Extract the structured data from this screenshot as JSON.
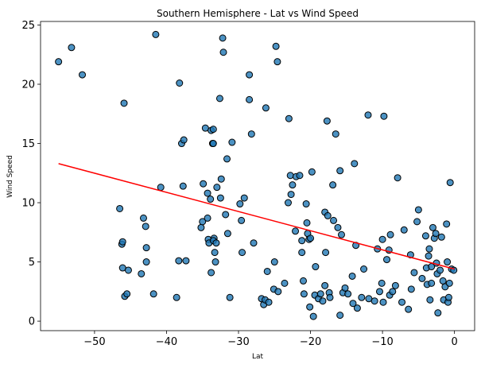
{
  "chart_data": {
    "type": "scatter",
    "title": "Southern Hemisphere - Lat vs Wind Speed",
    "xlabel": "Lat",
    "ylabel": "Wind Speed",
    "xlim": [
      -57.5,
      2.8
    ],
    "ylim": [
      -0.8,
      25.3
    ],
    "xticks": [
      -50,
      -40,
      -30,
      -20,
      -10,
      0
    ],
    "yticks": [
      0,
      5,
      10,
      15,
      20,
      25
    ],
    "grid": false,
    "point_color": "#1f77b4",
    "point_edge_color": "#000000",
    "point_alpha": 0.8,
    "regression": {
      "color": "#ff0000",
      "x": [
        -55,
        0
      ],
      "y": [
        13.3,
        4.4
      ]
    },
    "points": [
      [
        -55.0,
        21.9
      ],
      [
        -53.2,
        23.1
      ],
      [
        -51.7,
        20.8
      ],
      [
        -46.5,
        9.5
      ],
      [
        -46.2,
        6.5
      ],
      [
        -46.1,
        6.7
      ],
      [
        -46.1,
        4.5
      ],
      [
        -45.9,
        18.4
      ],
      [
        -45.8,
        2.1
      ],
      [
        -45.5,
        2.3
      ],
      [
        -45.3,
        4.3
      ],
      [
        -43.5,
        4.0
      ],
      [
        -43.2,
        8.7
      ],
      [
        -42.9,
        8.0
      ],
      [
        -42.8,
        6.2
      ],
      [
        -42.8,
        5.0
      ],
      [
        -41.8,
        2.3
      ],
      [
        -41.5,
        24.2
      ],
      [
        -40.8,
        11.3
      ],
      [
        -38.6,
        2.0
      ],
      [
        -38.3,
        5.1
      ],
      [
        -38.2,
        20.1
      ],
      [
        -37.9,
        15.0
      ],
      [
        -37.6,
        15.3
      ],
      [
        -37.7,
        11.4
      ],
      [
        -37.3,
        5.1
      ],
      [
        -35.2,
        7.9
      ],
      [
        -35.0,
        8.4
      ],
      [
        -34.9,
        11.6
      ],
      [
        -34.6,
        16.3
      ],
      [
        -34.3,
        10.8
      ],
      [
        -34.3,
        8.7
      ],
      [
        -34.2,
        6.9
      ],
      [
        -34.1,
        6.6
      ],
      [
        -33.9,
        10.3
      ],
      [
        -33.8,
        16.1
      ],
      [
        -33.8,
        4.1
      ],
      [
        -33.6,
        15.0
      ],
      [
        -33.5,
        16.2
      ],
      [
        -33.5,
        15.0
      ],
      [
        -33.4,
        7.0
      ],
      [
        -33.5,
        6.8
      ],
      [
        -33.3,
        5.8
      ],
      [
        -33.2,
        5.0
      ],
      [
        -33.1,
        6.6
      ],
      [
        -33.0,
        11.3
      ],
      [
        -32.6,
        18.8
      ],
      [
        -32.5,
        10.4
      ],
      [
        -32.4,
        12.0
      ],
      [
        -32.2,
        23.9
      ],
      [
        -32.1,
        22.7
      ],
      [
        -31.8,
        9.0
      ],
      [
        -31.6,
        13.7
      ],
      [
        -31.5,
        7.4
      ],
      [
        -31.2,
        2.0
      ],
      [
        -30.9,
        15.1
      ],
      [
        -29.8,
        9.9
      ],
      [
        -29.6,
        8.5
      ],
      [
        -29.5,
        5.8
      ],
      [
        -29.2,
        10.4
      ],
      [
        -28.5,
        20.8
      ],
      [
        -28.5,
        18.7
      ],
      [
        -28.2,
        15.8
      ],
      [
        -27.9,
        6.6
      ],
      [
        -26.8,
        1.9
      ],
      [
        -26.5,
        1.4
      ],
      [
        -26.3,
        1.8
      ],
      [
        -26.2,
        18.0
      ],
      [
        -26.0,
        4.2
      ],
      [
        -25.8,
        1.6
      ],
      [
        -25.1,
        2.7
      ],
      [
        -25.0,
        5.0
      ],
      [
        -24.8,
        23.2
      ],
      [
        -24.6,
        21.9
      ],
      [
        -24.5,
        2.5
      ],
      [
        -23.6,
        3.2
      ],
      [
        -23.1,
        10.0
      ],
      [
        -23.0,
        17.1
      ],
      [
        -22.8,
        12.3
      ],
      [
        -22.7,
        10.7
      ],
      [
        -22.5,
        11.5
      ],
      [
        -22.1,
        7.6
      ],
      [
        -22.0,
        12.2
      ],
      [
        -21.5,
        12.3
      ],
      [
        -21.2,
        6.8
      ],
      [
        -21.2,
        5.8
      ],
      [
        -21.0,
        3.4
      ],
      [
        -20.9,
        2.3
      ],
      [
        -20.6,
        9.9
      ],
      [
        -20.5,
        8.3
      ],
      [
        -20.4,
        7.4
      ],
      [
        -20.2,
        6.9
      ],
      [
        -20.1,
        1.2
      ],
      [
        -20.0,
        7.0
      ],
      [
        -19.8,
        12.6
      ],
      [
        -19.6,
        0.4
      ],
      [
        -19.4,
        2.2
      ],
      [
        -19.3,
        4.6
      ],
      [
        -18.9,
        1.9
      ],
      [
        -18.6,
        2.3
      ],
      [
        -18.3,
        1.7
      ],
      [
        -18.0,
        3.0
      ],
      [
        -18.0,
        9.2
      ],
      [
        -17.9,
        5.8
      ],
      [
        -17.7,
        16.9
      ],
      [
        -17.6,
        8.9
      ],
      [
        -17.4,
        2.4
      ],
      [
        -17.3,
        2.0
      ],
      [
        -16.9,
        11.5
      ],
      [
        -16.8,
        8.5
      ],
      [
        -16.5,
        15.8
      ],
      [
        -16.2,
        7.9
      ],
      [
        -15.9,
        0.5
      ],
      [
        -15.9,
        12.7
      ],
      [
        -15.7,
        7.3
      ],
      [
        -15.5,
        2.4
      ],
      [
        -15.2,
        2.8
      ],
      [
        -14.8,
        2.3
      ],
      [
        -14.2,
        3.8
      ],
      [
        -14.1,
        1.5
      ],
      [
        -13.9,
        13.3
      ],
      [
        -13.7,
        6.4
      ],
      [
        -13.5,
        1.1
      ],
      [
        -12.9,
        2.0
      ],
      [
        -12.6,
        4.4
      ],
      [
        -12.0,
        17.4
      ],
      [
        -11.9,
        1.9
      ],
      [
        -11.1,
        1.7
      ],
      [
        -10.7,
        6.1
      ],
      [
        -10.4,
        2.5
      ],
      [
        -10.1,
        3.2
      ],
      [
        -10.0,
        6.9
      ],
      [
        -9.9,
        1.6
      ],
      [
        -9.8,
        17.3
      ],
      [
        -9.4,
        5.2
      ],
      [
        -9.1,
        6.0
      ],
      [
        -9.0,
        2.2
      ],
      [
        -8.9,
        7.3
      ],
      [
        -8.6,
        2.5
      ],
      [
        -8.2,
        3.0
      ],
      [
        -7.9,
        12.1
      ],
      [
        -7.3,
        1.6
      ],
      [
        -7.0,
        7.7
      ],
      [
        -6.4,
        1.0
      ],
      [
        -6.1,
        5.6
      ],
      [
        -6.0,
        2.7
      ],
      [
        -5.6,
        4.1
      ],
      [
        -5.2,
        8.4
      ],
      [
        -5.0,
        9.4
      ],
      [
        -4.5,
        3.6
      ],
      [
        -4.0,
        7.2
      ],
      [
        -3.9,
        4.5
      ],
      [
        -3.8,
        3.1
      ],
      [
        -3.6,
        5.5
      ],
      [
        -3.5,
        6.1
      ],
      [
        -3.4,
        1.8
      ],
      [
        -3.2,
        4.6
      ],
      [
        -3.2,
        3.2
      ],
      [
        -3.0,
        7.9
      ],
      [
        -2.8,
        7.0
      ],
      [
        -2.6,
        7.4
      ],
      [
        -2.5,
        4.9
      ],
      [
        -2.4,
        4.0
      ],
      [
        -2.3,
        0.7
      ],
      [
        -2.0,
        4.3
      ],
      [
        -1.8,
        7.1
      ],
      [
        -1.6,
        3.4
      ],
      [
        -1.5,
        1.8
      ],
      [
        -1.3,
        2.9
      ],
      [
        -1.1,
        8.2
      ],
      [
        -1.0,
        5.0
      ],
      [
        -0.9,
        1.6
      ],
      [
        -0.8,
        2.0
      ],
      [
        -0.7,
        3.2
      ],
      [
        -0.6,
        11.7
      ],
      [
        -0.4,
        4.4
      ],
      [
        -0.1,
        4.3
      ]
    ]
  }
}
